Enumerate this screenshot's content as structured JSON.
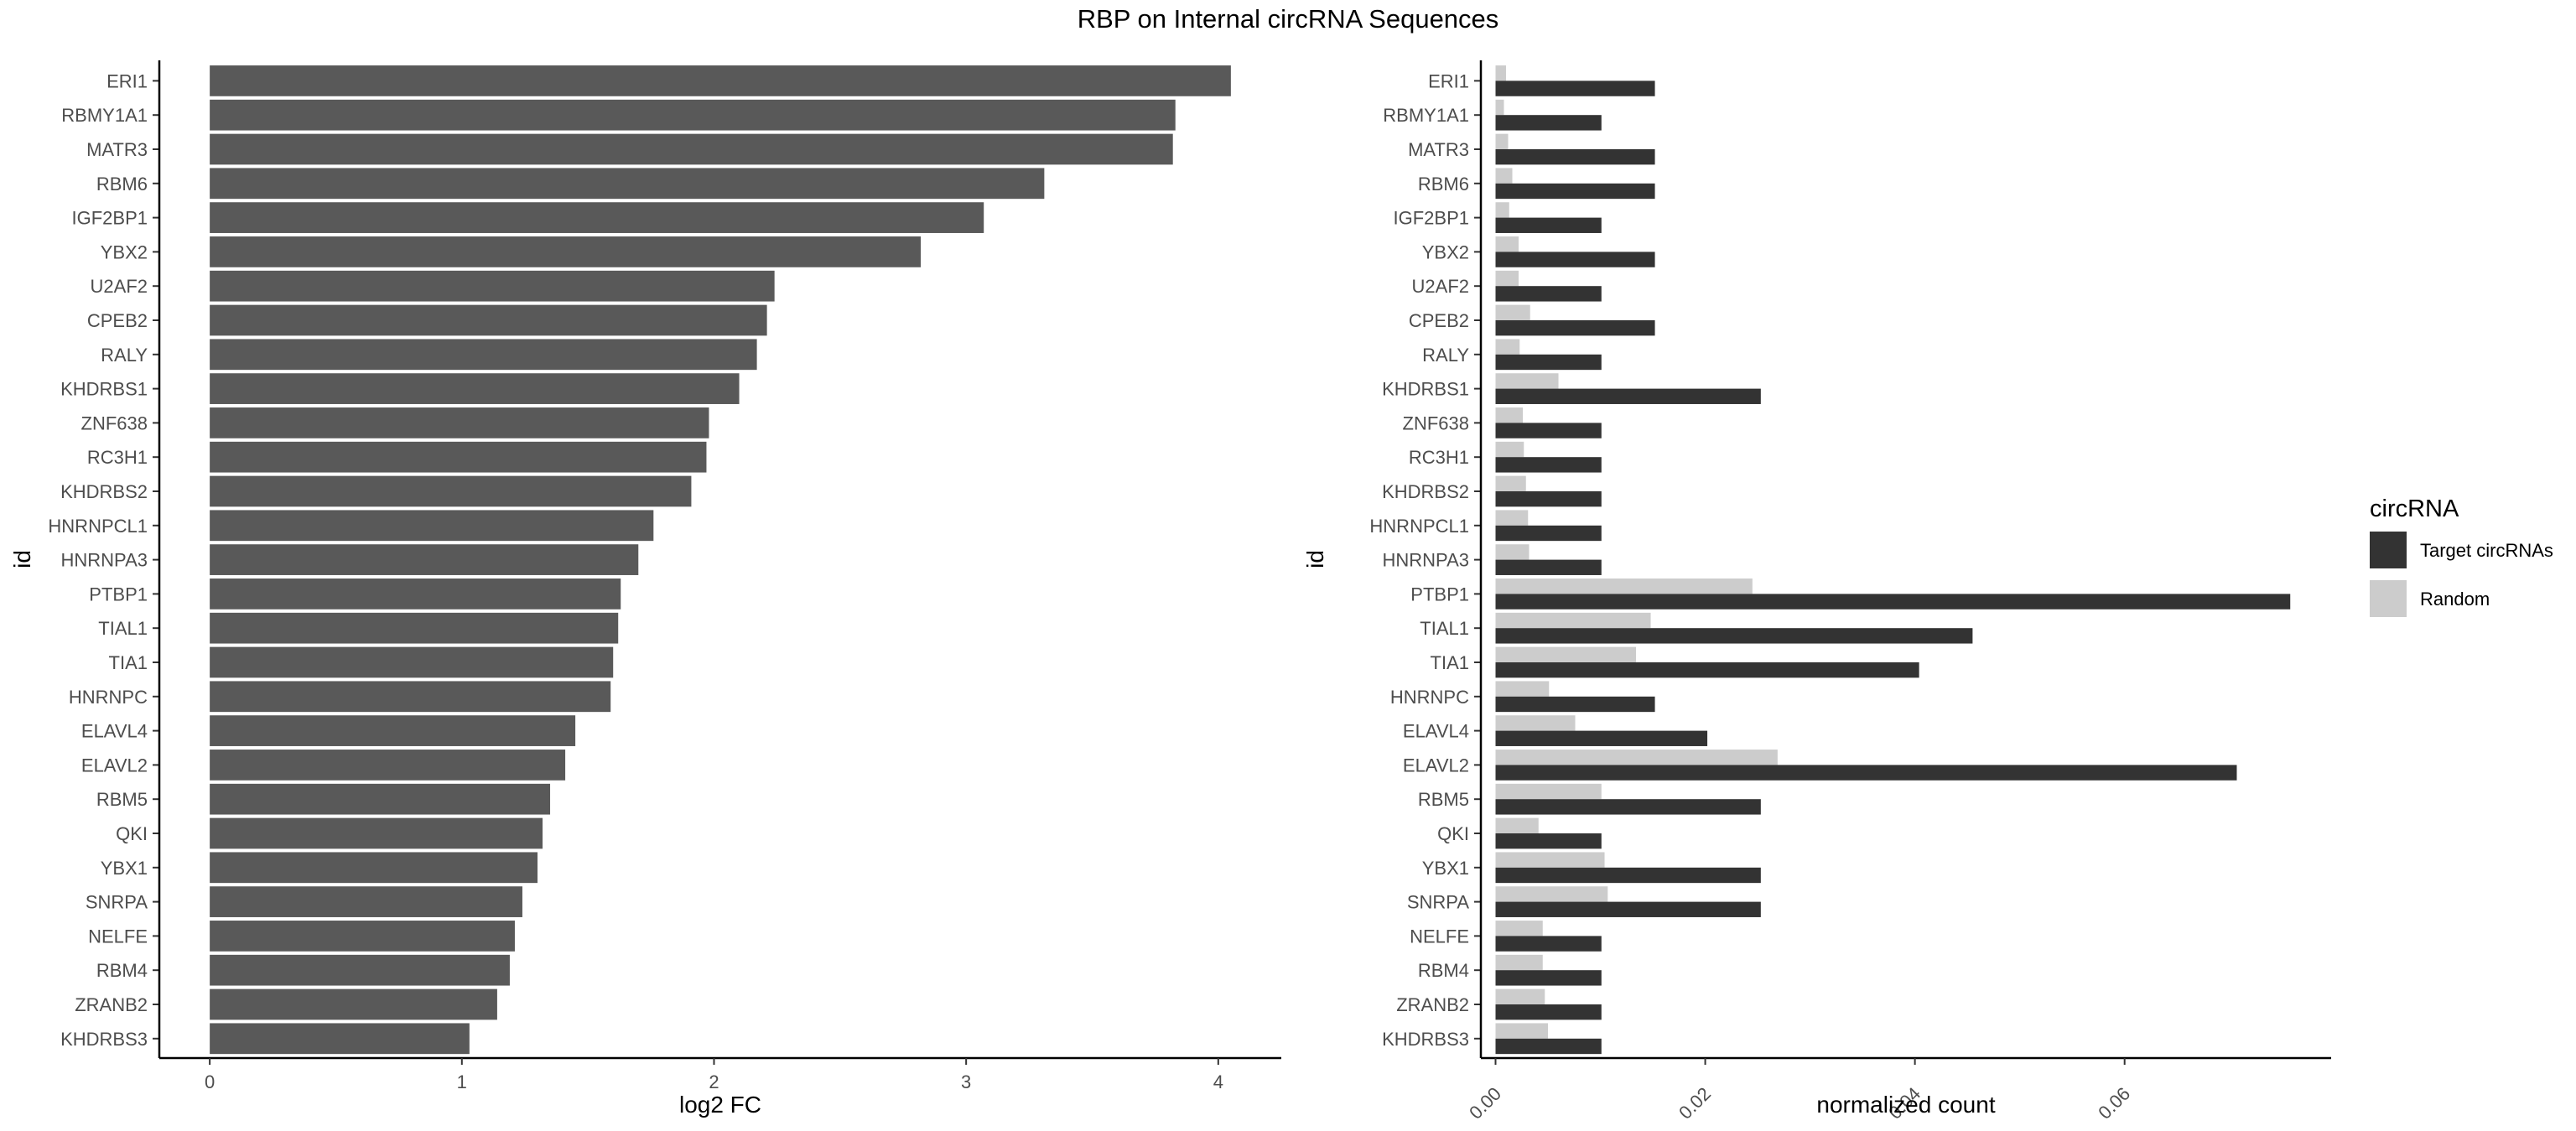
{
  "title": "RBP on Internal circRNA Sequences",
  "chart_data": [
    {
      "type": "bar",
      "orientation": "horizontal",
      "xlabel": "log2 FC",
      "ylabel": "id",
      "xlim": [
        -0.2,
        4.25
      ],
      "x_ticks": [
        "0",
        "1",
        "2",
        "3",
        "4"
      ],
      "grid": false,
      "bar_color": "#595959",
      "categories": [
        "ERI1",
        "RBMY1A1",
        "MATR3",
        "RBM6",
        "IGF2BP1",
        "YBX2",
        "U2AF2",
        "CPEB2",
        "RALY",
        "KHDRBS1",
        "ZNF638",
        "RC3H1",
        "KHDRBS2",
        "HNRNPCL1",
        "HNRNPA3",
        "PTBP1",
        "TIAL1",
        "TIA1",
        "HNRNPC",
        "ELAVL4",
        "ELAVL2",
        "RBM5",
        "QKI",
        "YBX1",
        "SNRPA",
        "NELFE",
        "RBM4",
        "ZRANB2",
        "KHDRBS3"
      ],
      "values": [
        4.05,
        3.83,
        3.82,
        3.31,
        3.07,
        2.82,
        2.24,
        2.21,
        2.17,
        2.1,
        1.98,
        1.97,
        1.91,
        1.76,
        1.7,
        1.63,
        1.62,
        1.6,
        1.59,
        1.45,
        1.41,
        1.35,
        1.32,
        1.3,
        1.24,
        1.21,
        1.19,
        1.14,
        1.03
      ]
    },
    {
      "type": "bar",
      "orientation": "horizontal",
      "grouped": true,
      "xlabel": "normalized count",
      "ylabel": "id",
      "xlim": [
        -0.0014,
        0.0797
      ],
      "x_ticks": [
        "0.00",
        "0.02",
        "0.04",
        "0.06"
      ],
      "grid": false,
      "legend": {
        "title": "circRNA",
        "position": "right"
      },
      "categories": [
        "ERI1",
        "RBMY1A1",
        "MATR3",
        "RBM6",
        "IGF2BP1",
        "YBX2",
        "U2AF2",
        "CPEB2",
        "RALY",
        "KHDRBS1",
        "ZNF638",
        "RC3H1",
        "KHDRBS2",
        "HNRNPCL1",
        "HNRNPA3",
        "PTBP1",
        "TIAL1",
        "TIA1",
        "HNRNPC",
        "ELAVL4",
        "ELAVL2",
        "RBM5",
        "QKI",
        "YBX1",
        "SNRPA",
        "NELFE",
        "RBM4",
        "ZRANB2",
        "KHDRBS3"
      ],
      "series": [
        {
          "name": "Target circRNAs",
          "color": "#333333",
          "values": [
            0.0152,
            0.0101,
            0.0152,
            0.0152,
            0.0101,
            0.0152,
            0.0101,
            0.0152,
            0.0101,
            0.0253,
            0.0101,
            0.0101,
            0.0101,
            0.0101,
            0.0101,
            0.0758,
            0.0455,
            0.0404,
            0.0152,
            0.0202,
            0.0707,
            0.0253,
            0.0101,
            0.0253,
            0.0253,
            0.0101,
            0.0101,
            0.0101,
            0.0101
          ]
        },
        {
          "name": "Random",
          "color": "#cccccc",
          "values": [
            0.001,
            0.0008,
            0.0012,
            0.0016,
            0.0013,
            0.0022,
            0.0022,
            0.0033,
            0.0023,
            0.006,
            0.0026,
            0.0027,
            0.0029,
            0.0031,
            0.0032,
            0.0245,
            0.0148,
            0.0134,
            0.0051,
            0.0076,
            0.0269,
            0.0101,
            0.0041,
            0.0104,
            0.0107,
            0.0045,
            0.0045,
            0.0047,
            0.005
          ]
        }
      ]
    }
  ]
}
